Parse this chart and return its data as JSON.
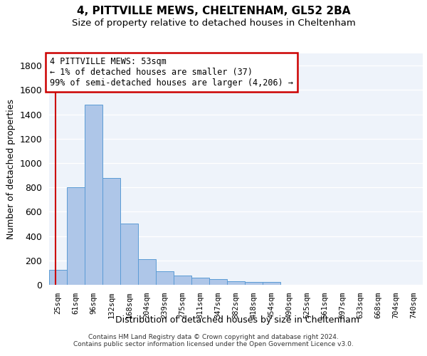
{
  "title": "4, PITTVILLE MEWS, CHELTENHAM, GL52 2BA",
  "subtitle": "Size of property relative to detached houses in Cheltenham",
  "xlabel": "Distribution of detached houses by size in Cheltenham",
  "ylabel": "Number of detached properties",
  "categories": [
    "25sqm",
    "61sqm",
    "96sqm",
    "132sqm",
    "168sqm",
    "204sqm",
    "239sqm",
    "275sqm",
    "311sqm",
    "347sqm",
    "382sqm",
    "418sqm",
    "454sqm",
    "490sqm",
    "525sqm",
    "561sqm",
    "597sqm",
    "633sqm",
    "668sqm",
    "704sqm",
    "740sqm"
  ],
  "values": [
    125,
    800,
    1480,
    875,
    500,
    210,
    110,
    75,
    60,
    45,
    30,
    25,
    25,
    0,
    0,
    0,
    0,
    0,
    0,
    0,
    0
  ],
  "bar_color": "#aec6e8",
  "bar_edge_color": "#5b9bd5",
  "annotation_text": "4 PITTVILLE MEWS: 53sqm\n← 1% of detached houses are smaller (37)\n99% of semi-detached houses are larger (4,206) →",
  "vline_color": "#cc0000",
  "vline_x": -0.15,
  "ylim": [
    0,
    1900
  ],
  "yticks": [
    0,
    200,
    400,
    600,
    800,
    1000,
    1200,
    1400,
    1600,
    1800
  ],
  "footer_line1": "Contains HM Land Registry data © Crown copyright and database right 2024.",
  "footer_line2": "Contains public sector information licensed under the Open Government Licence v3.0.",
  "bg_color": "#eef3fa",
  "title_fontsize": 11,
  "subtitle_fontsize": 9.5,
  "ann_fontsize": 8.5
}
